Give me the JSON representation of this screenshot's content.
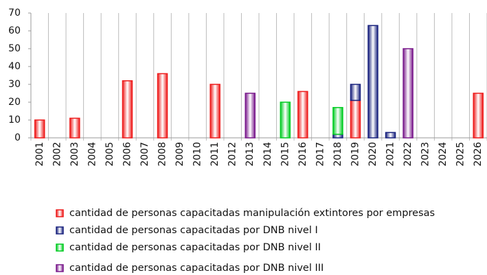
{
  "chart_data": {
    "type": "stacked_bar",
    "categories": [
      "2001",
      "2002",
      "2003",
      "2004",
      "2005",
      "2006",
      "2007",
      "2008",
      "2009",
      "2010",
      "2011",
      "2012",
      "2013",
      "2014",
      "2015",
      "2016",
      "2017",
      "2018",
      "2019",
      "2020",
      "2021",
      "2022",
      "2023",
      "2024",
      "2025",
      "2026"
    ],
    "series": [
      {
        "name": "cantidad de personas capacitadas manipulación extintores por empresas",
        "color": "#ee1c1c",
        "values": [
          10,
          null,
          11,
          null,
          null,
          32,
          null,
          36,
          null,
          null,
          30,
          null,
          null,
          null,
          null,
          26,
          null,
          null,
          21,
          null,
          null,
          null,
          null,
          null,
          null,
          25
        ]
      },
      {
        "name": "cantidad de personas capacitadas por DNB nivel I",
        "color": "#1a237e",
        "values": [
          null,
          null,
          null,
          null,
          null,
          null,
          null,
          null,
          null,
          null,
          null,
          null,
          null,
          null,
          null,
          null,
          null,
          2,
          9,
          63,
          3,
          null,
          null,
          null,
          null,
          null
        ]
      },
      {
        "name": "cantidad de personas capacitadas por DNB nivel II",
        "color": "#00cc22",
        "values": [
          null,
          null,
          null,
          null,
          null,
          null,
          null,
          null,
          null,
          null,
          null,
          null,
          null,
          null,
          20,
          null,
          null,
          15,
          null,
          null,
          null,
          null,
          null,
          null,
          null,
          null
        ]
      },
      {
        "name": "cantidad de personas capacitadas por DNB nivel III",
        "color": "#7a1a8c",
        "values": [
          null,
          null,
          null,
          null,
          null,
          null,
          null,
          null,
          null,
          null,
          null,
          null,
          25,
          null,
          null,
          null,
          null,
          null,
          null,
          null,
          null,
          50,
          null,
          null,
          null,
          null
        ]
      }
    ],
    "ylim": [
      0,
      70
    ],
    "yticks": [
      0,
      10,
      20,
      30,
      40,
      50,
      60,
      70
    ],
    "grid": true
  }
}
